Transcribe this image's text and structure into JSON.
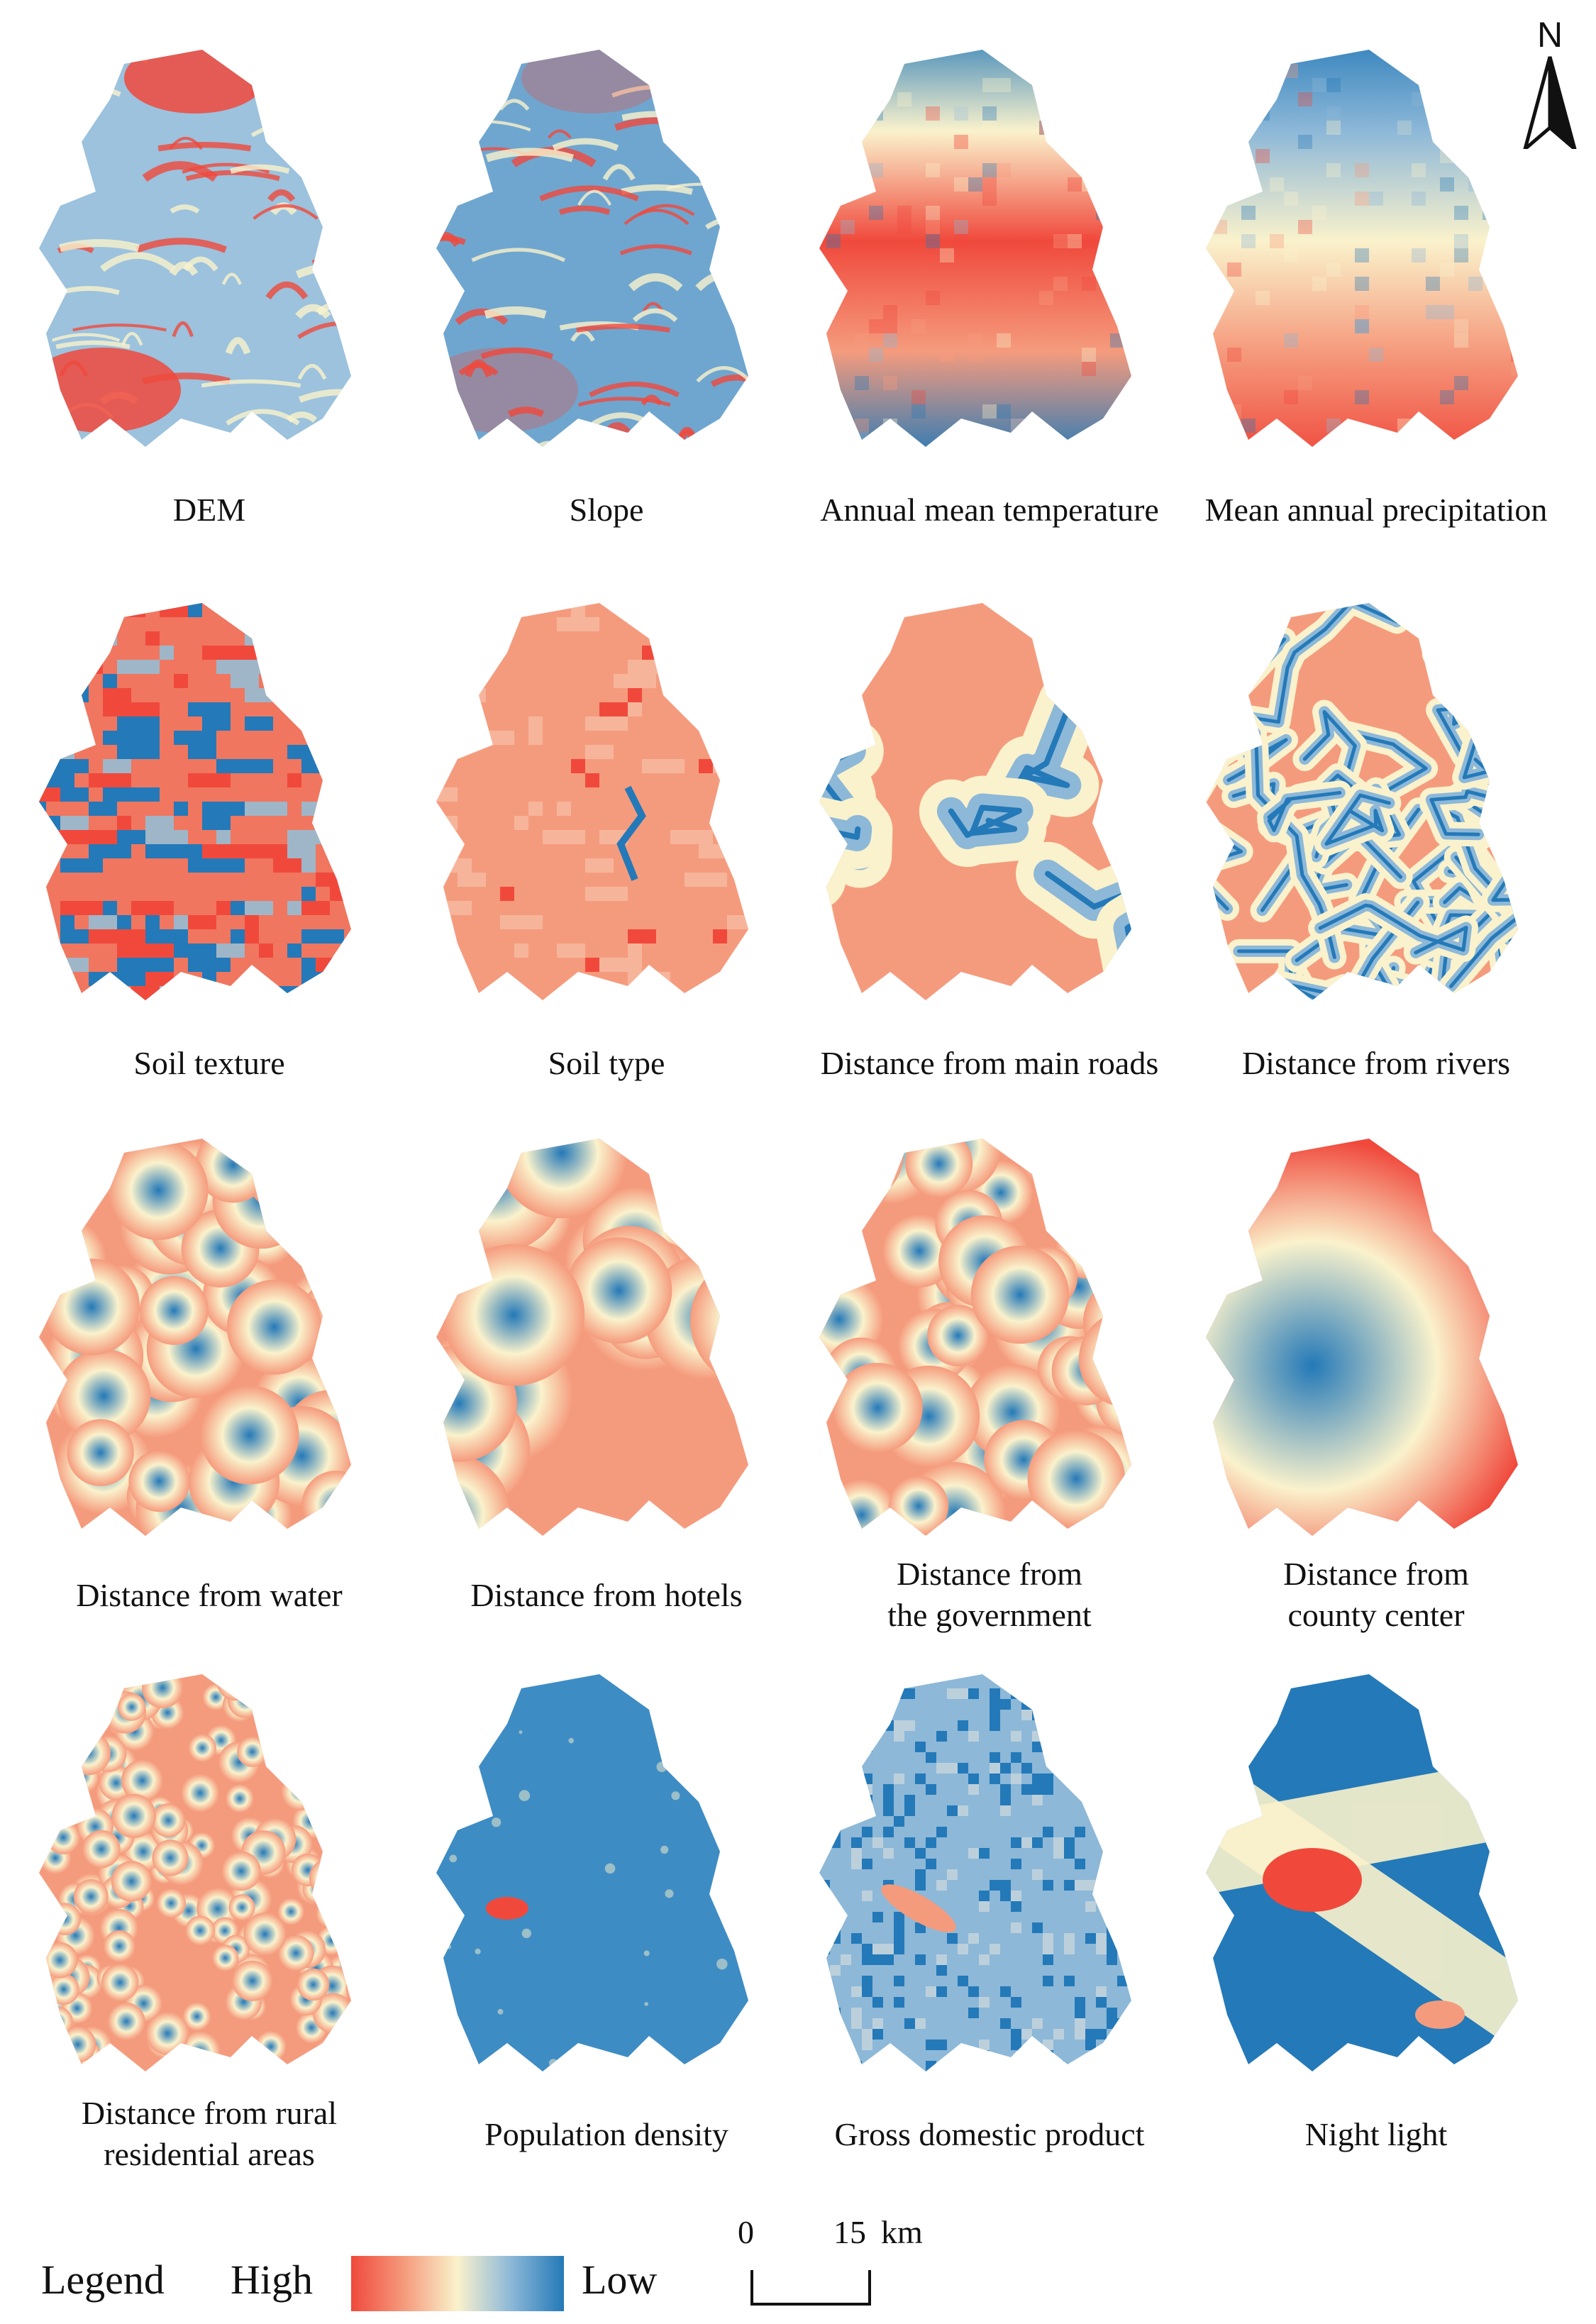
{
  "legend": {
    "title": "Legend",
    "high": "High",
    "low": "Low"
  },
  "scale_bar": {
    "zero": "0",
    "distance": "15",
    "unit": "km"
  },
  "north_arrow": {
    "label": "N"
  },
  "colors": {
    "high": "#f0493c",
    "mid": "#faf2cc",
    "low": "#2479b8"
  },
  "panels": [
    {
      "name": "dem",
      "caption": [
        "DEM"
      ]
    },
    {
      "name": "slope",
      "caption": [
        "Slope"
      ]
    },
    {
      "name": "temperature",
      "caption": [
        "Annual mean temperature"
      ]
    },
    {
      "name": "precipitation",
      "caption": [
        "Mean annual precipitation"
      ]
    },
    {
      "name": "soil-texture",
      "caption": [
        "Soil texture"
      ]
    },
    {
      "name": "soil-type",
      "caption": [
        "Soil type"
      ]
    },
    {
      "name": "main-roads",
      "caption": [
        "Distance from main roads"
      ]
    },
    {
      "name": "rivers",
      "caption": [
        "Distance from rivers"
      ]
    },
    {
      "name": "water",
      "caption": [
        "Distance from water"
      ]
    },
    {
      "name": "hotels",
      "caption": [
        "Distance from hotels"
      ]
    },
    {
      "name": "government",
      "caption": [
        "Distance from",
        "the government"
      ]
    },
    {
      "name": "county-center",
      "caption": [
        "Distance from",
        "county center"
      ]
    },
    {
      "name": "rural-residential",
      "caption": [
        "Distance from rural",
        "residential areas"
      ]
    },
    {
      "name": "population-density",
      "caption": [
        "Population density"
      ]
    },
    {
      "name": "gdp",
      "caption": [
        "Gross domestic product"
      ]
    },
    {
      "name": "night-light",
      "caption": [
        "Night light"
      ]
    }
  ]
}
